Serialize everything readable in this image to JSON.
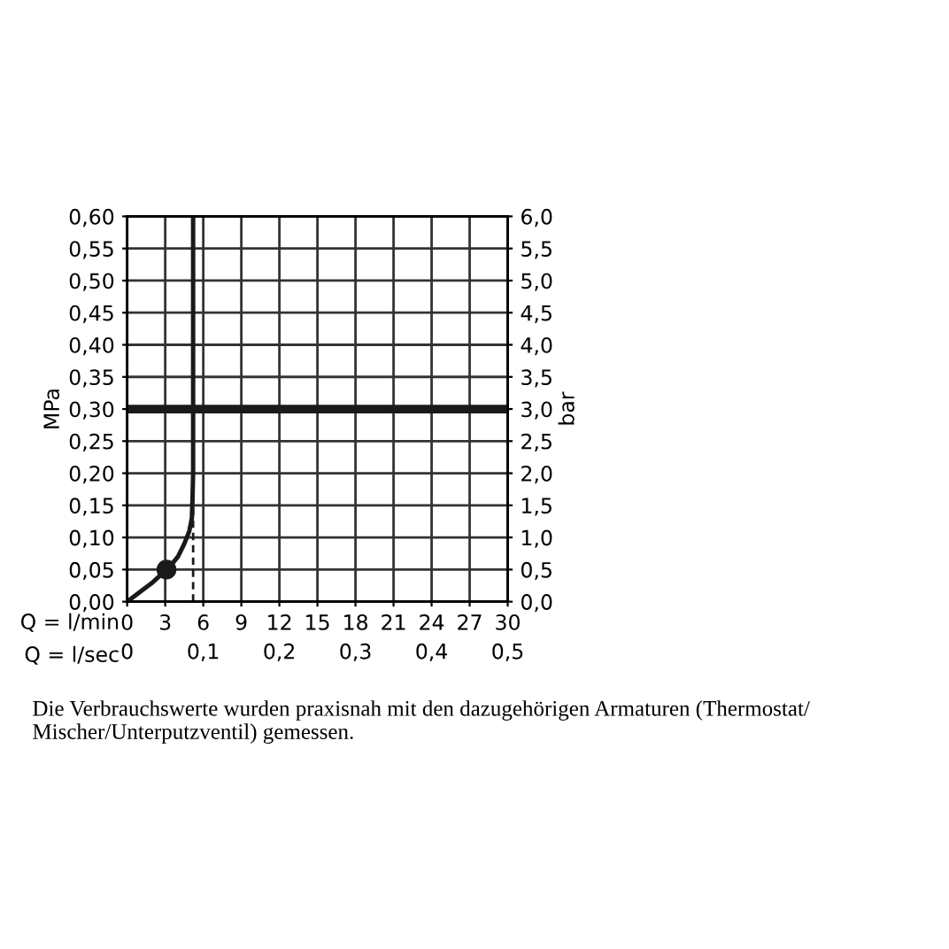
{
  "chart_data": {
    "type": "line",
    "ylabel": "MPa",
    "y2label": "bar",
    "xlabel": "Q = l/min",
    "x2label": "Q = l/sec",
    "x": [
      0,
      1,
      2,
      3,
      3.5,
      4,
      4.5,
      4.9,
      5.1,
      5.15,
      5.2,
      5.2
    ],
    "series": [
      {
        "color": "#1a1a1a",
        "values": [
          0,
          0.015,
          0.03,
          0.048,
          0.058,
          0.07,
          0.09,
          0.11,
          0.13,
          0.16,
          0.2,
          0.6
        ]
      },
      {
        "type": "scatter",
        "marker": "circle",
        "color": "#1a1a1a",
        "x": [
          3.1
        ],
        "values": [
          0.05
        ]
      }
    ],
    "xlim": [
      0,
      30
    ],
    "xticks": [
      0,
      3,
      6,
      9,
      12,
      15,
      18,
      21,
      24,
      27,
      30
    ],
    "x2lim": [
      0,
      0.5
    ],
    "x2ticks": [
      0,
      {
        "value": 0.1,
        "label": "0,1"
      },
      {
        "value": 0.2,
        "label": "0,2"
      },
      {
        "value": 0.3,
        "label": "0,3"
      },
      {
        "value": 0.4,
        "label": "0,4"
      },
      {
        "value": 0.5,
        "label": "0,5"
      }
    ],
    "ylim": [
      0,
      0.6
    ],
    "yticks": [
      {
        "value": 0,
        "label": "0,00"
      },
      {
        "value": 0.05,
        "label": "0,05"
      },
      {
        "value": 0.1,
        "label": "0,10"
      },
      {
        "value": 0.15,
        "label": "0,15"
      },
      {
        "value": 0.2,
        "label": "0,20"
      },
      {
        "value": 0.25,
        "label": "0,25"
      },
      {
        "value": 0.3,
        "label": "0,30"
      },
      {
        "value": 0.35,
        "label": "0,35"
      },
      {
        "value": 0.4,
        "label": "0,40"
      },
      {
        "value": 0.45,
        "label": "0,45"
      },
      {
        "value": 0.5,
        "label": "0,50"
      },
      {
        "value": 0.55,
        "label": "0,55"
      },
      {
        "value": 0.6,
        "label": "0,60"
      }
    ],
    "y2lim": [
      0,
      6
    ],
    "y2ticks": [
      {
        "value": 0,
        "label": "0,0"
      },
      {
        "value": 0.5,
        "label": "0,5"
      },
      {
        "value": 1,
        "label": "1,0"
      },
      {
        "value": 1.5,
        "label": "1,5"
      },
      {
        "value": 2,
        "label": "2,0"
      },
      {
        "value": 2.5,
        "label": "2,5"
      },
      {
        "value": 3,
        "label": "3,0"
      },
      {
        "value": 3.5,
        "label": "3,5"
      },
      {
        "value": 4,
        "label": "4,0"
      },
      {
        "value": 4.5,
        "label": "4,5"
      },
      {
        "value": 5,
        "label": "5,0"
      },
      {
        "value": 5.5,
        "label": "5,5"
      },
      {
        "value": 6,
        "label": "6,0"
      }
    ],
    "ref_lines": [
      {
        "axis": "y",
        "value": 0.3,
        "color": "#1a1a1a"
      },
      {
        "axis": "x",
        "value": 5.2,
        "color": "#1a1a1a",
        "line_style": "dashed"
      }
    ],
    "grid": true,
    "annotations": [
      "Die Verbrauchswerte wurden praxisnah mit den dazugehörigen Armaturen (Thermostat/ Mischer/Unterputzventil) gemessen."
    ]
  }
}
